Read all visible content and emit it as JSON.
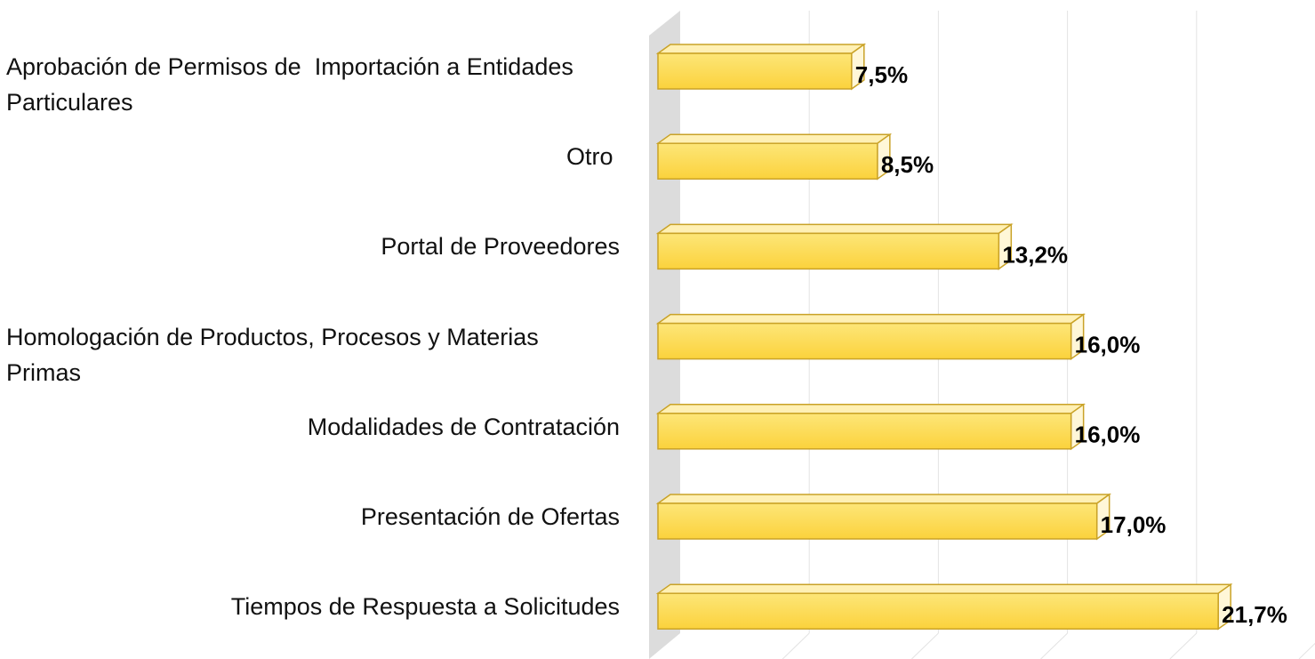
{
  "chart_data": {
    "type": "bar3d-horizontal",
    "categories": [
      "Aprobación de Permisos de  Importación a Entidades Particulares",
      "Otro ",
      "Portal de Proveedores",
      "Homologación de Productos, Procesos y Materias Primas",
      "Modalidades de Contratación",
      "Presentación de Ofertas",
      "Tiempos de Respuesta a Solicitudes"
    ],
    "values": [
      7.5,
      8.5,
      13.2,
      16.0,
      16.0,
      17.0,
      21.7
    ],
    "value_labels": [
      "7,5%",
      "8,5%",
      "13,2%",
      "16,0%",
      "16,0%",
      "17,0%",
      "21,7%"
    ],
    "color": "#fcd84a",
    "xlim": [
      0,
      25
    ],
    "xticks": [
      0,
      5,
      10,
      15,
      20,
      25
    ],
    "grid": true
  }
}
